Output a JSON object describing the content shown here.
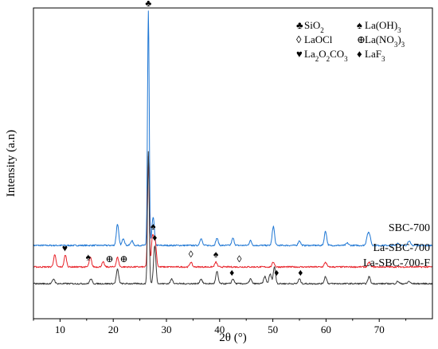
{
  "chart_data": {
    "type": "line",
    "xlabel": "2θ (°)",
    "ylabel": "Intensity (a.n)",
    "xlim": [
      5,
      80
    ],
    "x_ticks": [
      10,
      20,
      30,
      40,
      50,
      60,
      70
    ],
    "y_ticks_shown": false,
    "grid": false,
    "series": [
      {
        "name": "SBC-700",
        "color": "#1f77d4",
        "baseline": 0.16,
        "peaks": [
          {
            "x": 20.8,
            "h": 0.09
          },
          {
            "x": 21.9,
            "h": 0.03
          },
          {
            "x": 23.5,
            "h": 0.02
          },
          {
            "x": 26.6,
            "h": 0.98
          },
          {
            "x": 27.5,
            "h": 0.12
          },
          {
            "x": 36.5,
            "h": 0.03
          },
          {
            "x": 39.5,
            "h": 0.03
          },
          {
            "x": 42.5,
            "h": 0.03
          },
          {
            "x": 45.8,
            "h": 0.02
          },
          {
            "x": 50.1,
            "h": 0.08
          },
          {
            "x": 55.0,
            "h": 0.02
          },
          {
            "x": 59.9,
            "h": 0.06
          },
          {
            "x": 64.0,
            "h": 0.01
          },
          {
            "x": 67.8,
            "h": 0.04
          },
          {
            "x": 68.2,
            "h": 0.04
          },
          {
            "x": 73.5,
            "h": 0.01
          },
          {
            "x": 75.6,
            "h": 0.02
          }
        ]
      },
      {
        "name": "La-SBC-700",
        "color": "#e8232a",
        "baseline": 0.07,
        "peaks": [
          {
            "x": 9.0,
            "h": 0.05
          },
          {
            "x": 11.0,
            "h": 0.05
          },
          {
            "x": 15.7,
            "h": 0.04
          },
          {
            "x": 18.1,
            "h": 0.02
          },
          {
            "x": 20.8,
            "h": 0.04
          },
          {
            "x": 26.6,
            "h": 0.46
          },
          {
            "x": 27.4,
            "h": 0.13
          },
          {
            "x": 27.9,
            "h": 0.1
          },
          {
            "x": 34.6,
            "h": 0.02
          },
          {
            "x": 39.3,
            "h": 0.02
          },
          {
            "x": 50.1,
            "h": 0.02
          },
          {
            "x": 59.9,
            "h": 0.02
          },
          {
            "x": 68.1,
            "h": 0.02
          }
        ]
      },
      {
        "name": "La-SBC-700-F",
        "color": "#3a3a3a",
        "baseline": 0.0,
        "peaks": [
          {
            "x": 8.8,
            "h": 0.02
          },
          {
            "x": 15.8,
            "h": 0.02
          },
          {
            "x": 20.8,
            "h": 0.06
          },
          {
            "x": 26.6,
            "h": 0.55
          },
          {
            "x": 27.8,
            "h": 0.16
          },
          {
            "x": 31.0,
            "h": 0.02
          },
          {
            "x": 36.5,
            "h": 0.02
          },
          {
            "x": 39.5,
            "h": 0.05
          },
          {
            "x": 42.5,
            "h": 0.02
          },
          {
            "x": 45.8,
            "h": 0.02
          },
          {
            "x": 48.5,
            "h": 0.03
          },
          {
            "x": 49.5,
            "h": 0.04
          },
          {
            "x": 50.3,
            "h": 0.07
          },
          {
            "x": 55.0,
            "h": 0.02
          },
          {
            "x": 59.9,
            "h": 0.03
          },
          {
            "x": 68.1,
            "h": 0.03
          },
          {
            "x": 73.5,
            "h": 0.01
          },
          {
            "x": 75.6,
            "h": 0.01
          }
        ]
      }
    ],
    "legend": [
      {
        "symbol": "♣",
        "formula": "SiO",
        "sub": "2",
        "rest": "",
        "sub2": ""
      },
      {
        "symbol": "♠",
        "formula": "La(OH)",
        "sub": "3",
        "rest": "",
        "sub2": ""
      },
      {
        "symbol": "◊",
        "formula": "LaOCl",
        "sub": "",
        "rest": "",
        "sub2": ""
      },
      {
        "symbol": "⊕",
        "formula": "La(NO",
        "sub": "3",
        "rest": ")",
        "sub2": "3"
      },
      {
        "symbol": "♥",
        "formula": "La",
        "sub": "2",
        "rest": "O",
        "sub2": "2",
        "rest2": "CO",
        "sub3": "3"
      },
      {
        "symbol": "♦",
        "formula": "LaF",
        "sub": "3",
        "rest": "",
        "sub2": ""
      }
    ],
    "peak_markers": [
      {
        "series": "SBC-700",
        "symbol": "♣",
        "x": 26.6
      },
      {
        "series": "La-SBC-700",
        "symbol": "♥",
        "x": 10.9
      },
      {
        "series": "La-SBC-700",
        "symbol": "♠",
        "x": 15.3
      },
      {
        "series": "La-SBC-700",
        "symbol": "⊕",
        "x": 19.3
      },
      {
        "series": "La-SBC-700",
        "symbol": "⊕",
        "x": 22.0
      },
      {
        "series": "La-SBC-700",
        "symbol": "♠",
        "x": 27.5
      },
      {
        "series": "La-SBC-700",
        "symbol": "◊",
        "x": 34.6
      },
      {
        "series": "La-SBC-700",
        "symbol": "♠",
        "x": 39.3
      },
      {
        "series": "La-SBC-700",
        "symbol": "◊",
        "x": 43.7
      },
      {
        "series": "La-SBC-700-F",
        "symbol": "♦",
        "x": 27.8
      },
      {
        "series": "La-SBC-700-F",
        "symbol": "♦",
        "x": 42.3
      },
      {
        "series": "La-SBC-700-F",
        "symbol": "♦",
        "x": 50.7
      },
      {
        "series": "La-SBC-700-F",
        "symbol": "♦",
        "x": 55.2
      }
    ]
  }
}
